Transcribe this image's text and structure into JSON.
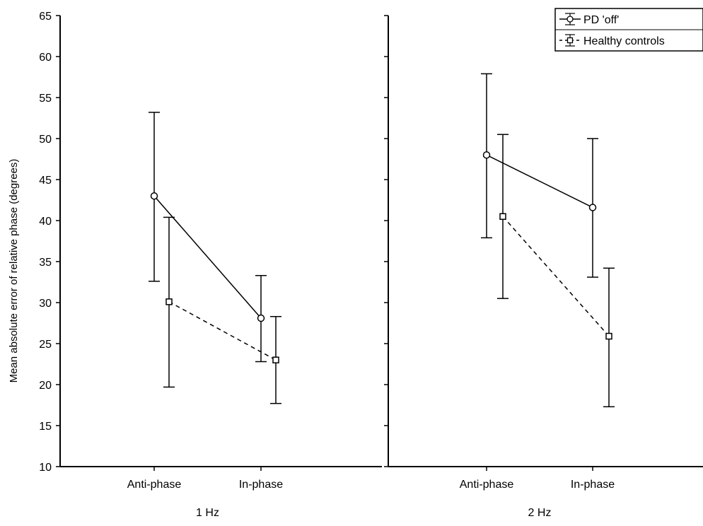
{
  "chart_data": {
    "type": "line",
    "ylabel": "Mean absolute error of relative phase (degrees)",
    "ylim": [
      10,
      65
    ],
    "yticks": [
      10,
      15,
      20,
      25,
      30,
      35,
      40,
      45,
      50,
      55,
      60,
      65
    ],
    "categories": [
      "Anti-phase",
      "In-phase"
    ],
    "category_labels": [
      "Anti-phase",
      "In-phase"
    ],
    "legend": {
      "placement": "top-right",
      "entries": [
        "PD 'off'",
        "Healthy controls"
      ]
    },
    "panels": [
      {
        "label": "1 Hz",
        "series": [
          {
            "name": "PD 'off'",
            "marker": "circle",
            "line": "solid",
            "values": [
              43.0,
              28.1
            ],
            "lower": [
              32.6,
              22.8
            ],
            "upper": [
              53.2,
              33.3
            ]
          },
          {
            "name": "Healthy controls",
            "marker": "square",
            "line": "dashed",
            "values": [
              30.1,
              23.0
            ],
            "lower": [
              19.7,
              17.7
            ],
            "upper": [
              40.4,
              28.3
            ]
          }
        ]
      },
      {
        "label": "2 Hz",
        "series": [
          {
            "name": "PD 'off'",
            "marker": "circle",
            "line": "solid",
            "values": [
              48.0,
              41.6
            ],
            "lower": [
              37.9,
              33.1
            ],
            "upper": [
              57.9,
              50.0
            ]
          },
          {
            "name": "Healthy controls",
            "marker": "square",
            "line": "dashed",
            "values": [
              40.5,
              25.9
            ],
            "lower": [
              30.5,
              17.3
            ],
            "upper": [
              50.5,
              34.2
            ]
          }
        ]
      }
    ]
  }
}
